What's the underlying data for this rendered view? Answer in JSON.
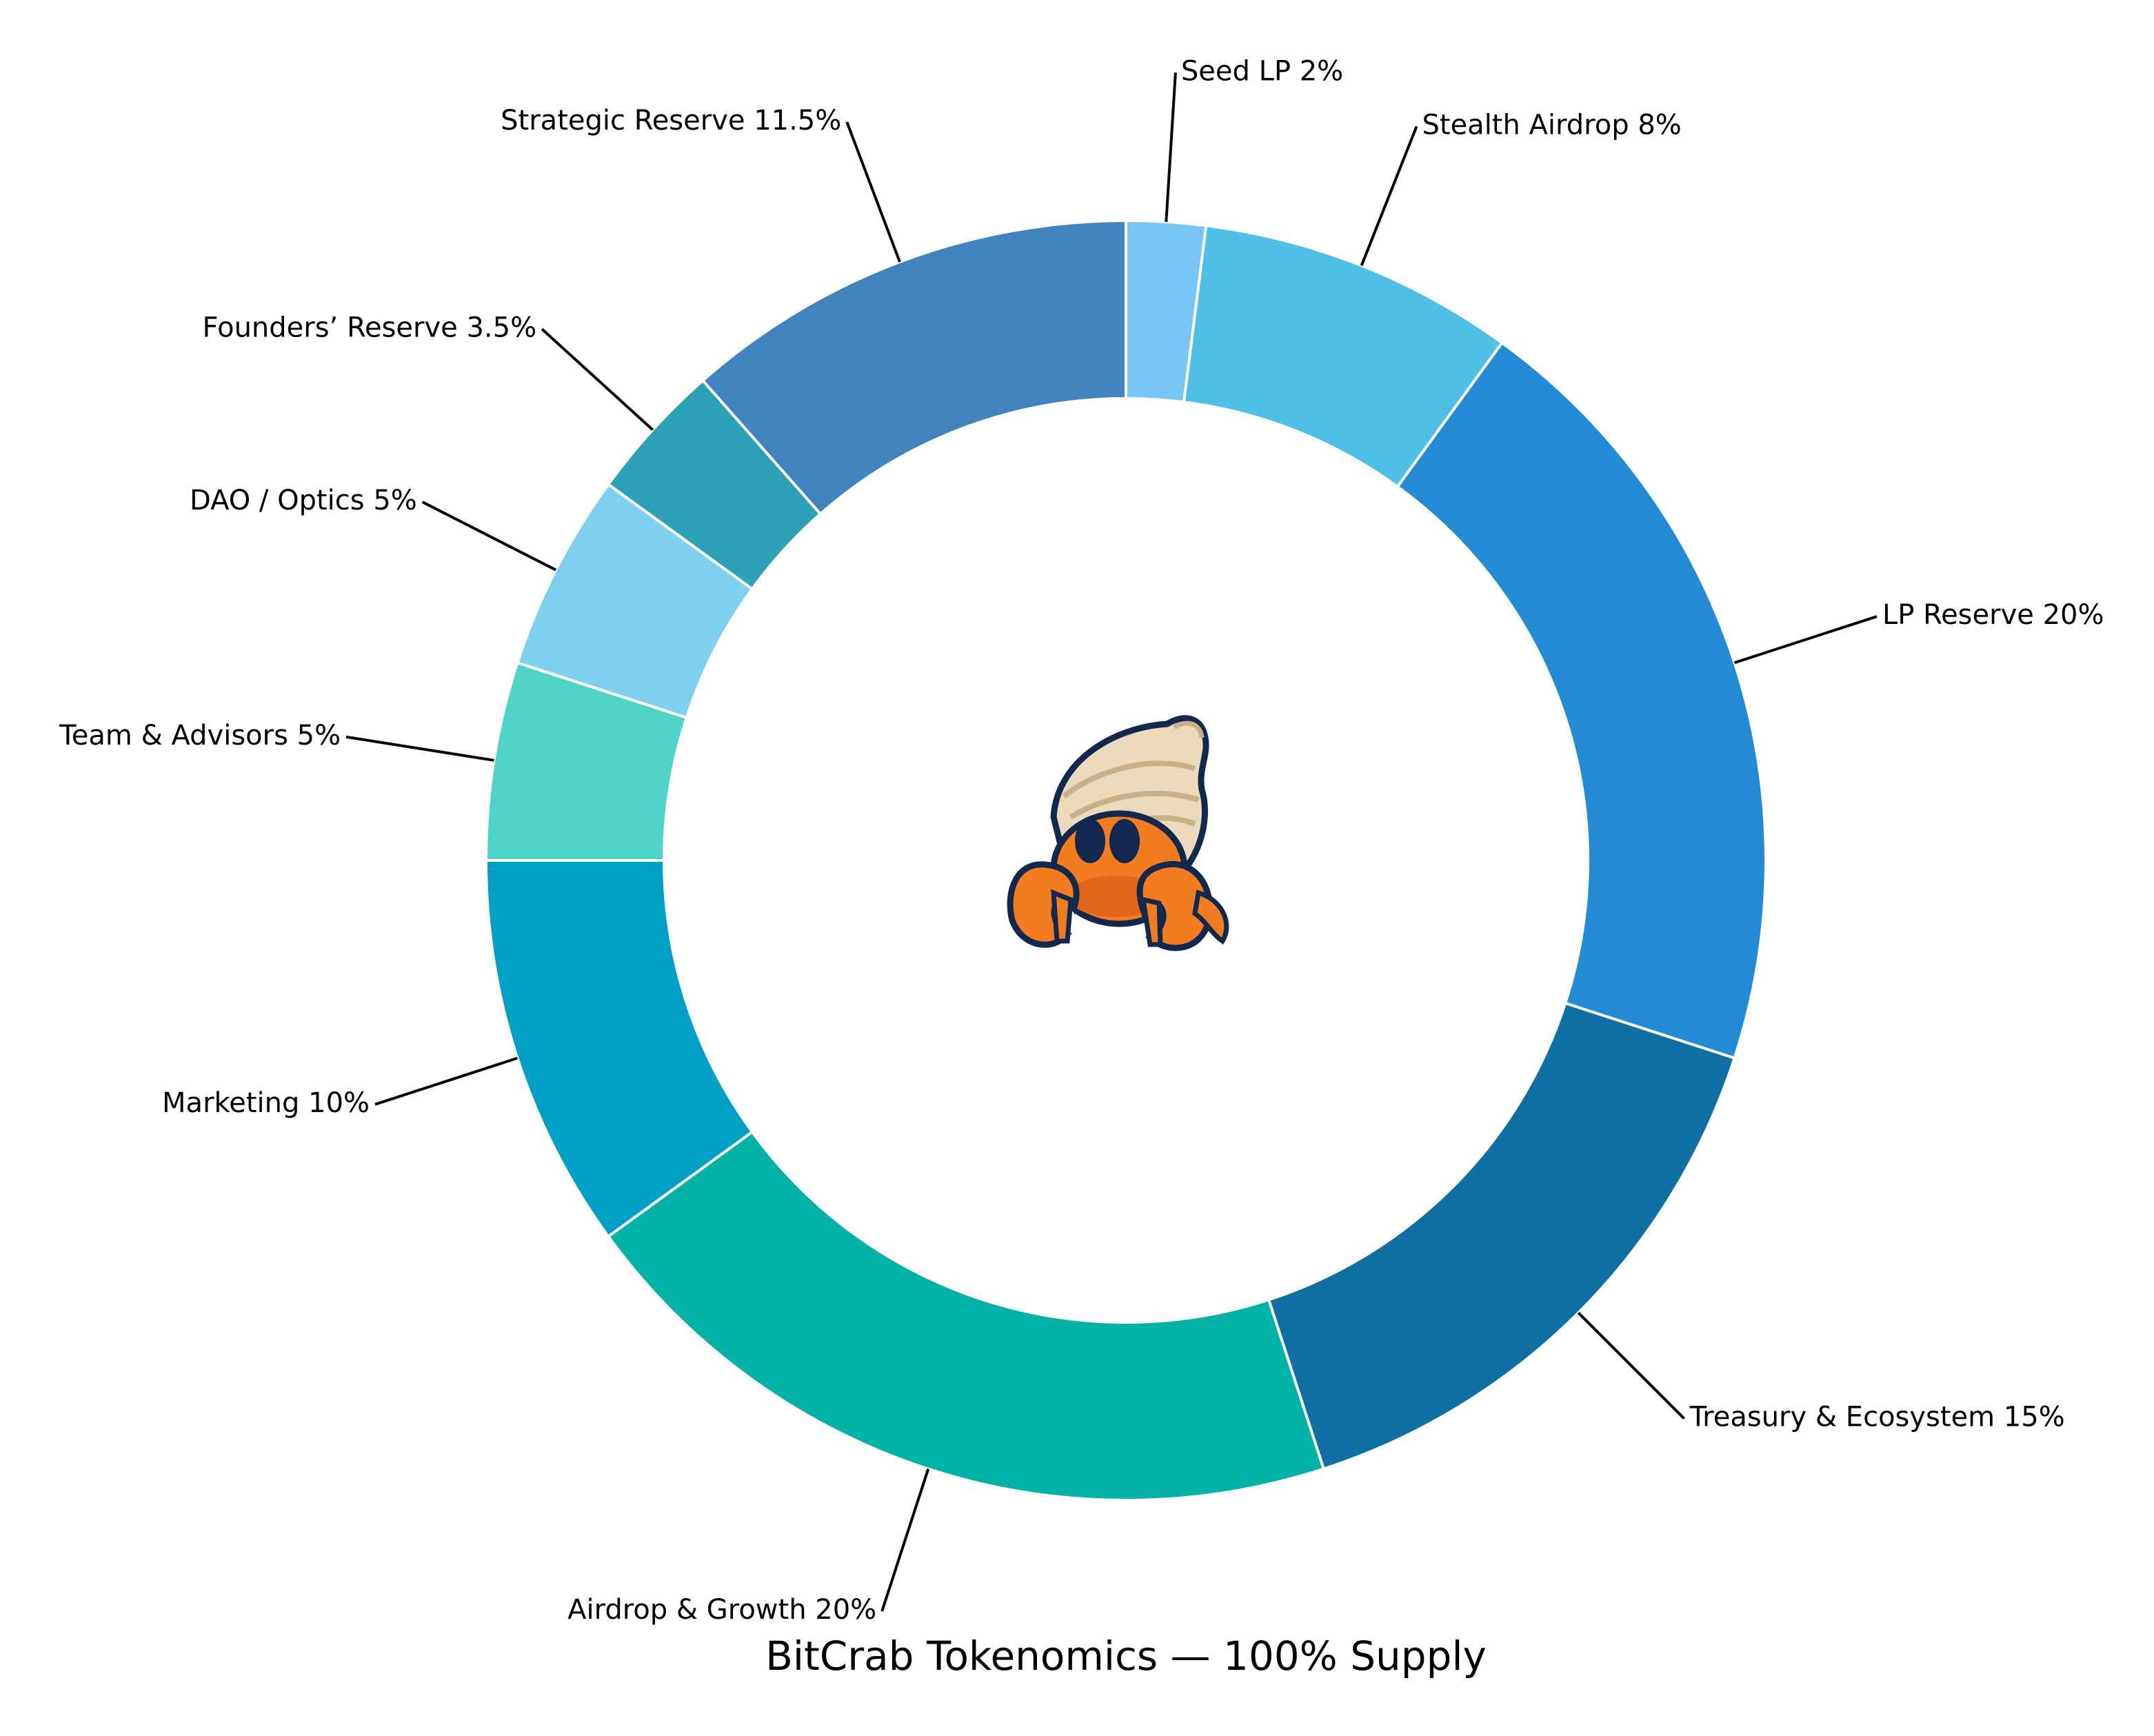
{
  "chart_data": {
    "type": "pie",
    "variant": "donut",
    "title": "BitCrab Tokenomics — 100% Supply",
    "start": "top",
    "direction": "clockwise",
    "center_image": "hermit-crab-mascot",
    "slices": [
      {
        "label": "Seed LP",
        "value": 2,
        "display": "Seed LP 2%",
        "color": "#78C4F5"
      },
      {
        "label": "Stealth Airdrop",
        "value": 8,
        "display": "Stealth Airdrop 8%",
        "color": "#4FBFE8"
      },
      {
        "label": "LP Reserve",
        "value": 20,
        "display": "LP Reserve 20%",
        "color": "#228BD3"
      },
      {
        "label": "Treasury & Ecosystem",
        "value": 15,
        "display": "Treasury & Ecosystem 15%",
        "color": "#106FA2"
      },
      {
        "label": "Airdrop & Growth",
        "value": 20,
        "display": "Airdrop & Growth 20%",
        "color": "#03B2A6"
      },
      {
        "label": "Marketing",
        "value": 10,
        "display": "Marketing 10%",
        "color": "#009FC6"
      },
      {
        "label": "Team & Advisors",
        "value": 5,
        "display": "Team & Advisors 5%",
        "color": "#4FD3C6"
      },
      {
        "label": "DAO / Optics",
        "value": 5,
        "display": "DAO / Optics 5%",
        "color": "#7FD0EF"
      },
      {
        "label": "Founders’ Reserve",
        "value": 3.5,
        "display": "Founders’ Reserve 3.5%",
        "color": "#2CA1B5"
      },
      {
        "label": "Strategic Reserve",
        "value": 11.5,
        "display": "Strategic Reserve 11.5%",
        "color": "#4083BF"
      }
    ]
  }
}
